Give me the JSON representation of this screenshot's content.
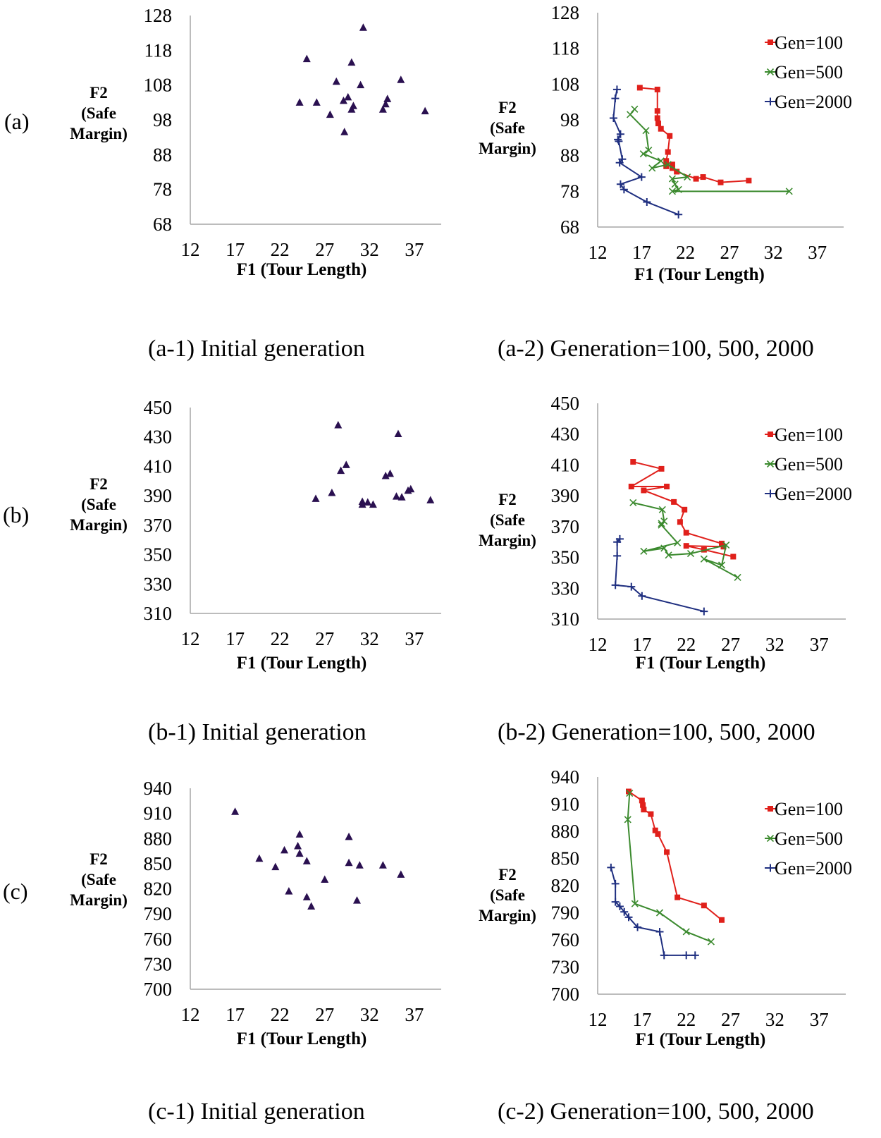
{
  "row_labels": [
    "(a)",
    "(b)",
    "(c)"
  ],
  "colors": {
    "gen100": "#e0201b",
    "gen500": "#3b8a2e",
    "gen2000": "#1f2f80",
    "initial": "#2a1050",
    "axis": "#a6a6a6"
  },
  "chart_data": [
    {
      "type": "scatter",
      "caption": "(a-1) Initial generation",
      "xlabel": "F1 (Tour Length)",
      "ylabel": [
        "F2",
        "(Safe",
        "Margin)"
      ],
      "xlim": [
        12,
        40
      ],
      "ylim": [
        68,
        128
      ],
      "xticks": [
        "12",
        "17",
        "22",
        "27",
        "32",
        "37"
      ],
      "yticks": [
        "68",
        "78",
        "88",
        "98",
        "108",
        "118",
        "128"
      ],
      "legend": null,
      "series": [
        {
          "name": "Initial",
          "marker": "triangle",
          "color": "#2a1050",
          "x": [
            31.3,
            25.0,
            30.0,
            28.3,
            31.0,
            35.5,
            29.6,
            29.1,
            24.2,
            26.1,
            30.2,
            30.0,
            34.0,
            33.8,
            33.5,
            27.6,
            38.2,
            29.2
          ],
          "y": [
            124.5,
            115.5,
            114.5,
            109.0,
            108.0,
            109.5,
            104.5,
            103.5,
            103.0,
            103.0,
            102.0,
            101.0,
            104.0,
            102.5,
            101.0,
            99.5,
            100.5,
            94.5
          ]
        }
      ]
    },
    {
      "type": "line",
      "caption": "(a-2) Generation=100, 500, 2000",
      "xlabel": "F1 (Tour Length)",
      "ylabel": [
        "F2",
        "(Safe",
        "Margin)"
      ],
      "xlim": [
        12,
        40
      ],
      "ylim": [
        68,
        128
      ],
      "xticks": [
        "12",
        "17",
        "22",
        "27",
        "32",
        "37"
      ],
      "yticks": [
        "68",
        "78",
        "88",
        "98",
        "108",
        "118",
        "128"
      ],
      "legend": [
        "Gen=100",
        "Gen=500",
        "Gen=2000"
      ],
      "series": [
        {
          "name": "Gen=100",
          "marker": "square",
          "color": "#e0201b",
          "x": [
            16.8,
            18.8,
            18.8,
            18.8,
            18.9,
            19.2,
            20.2,
            20.0,
            19.8,
            19.8,
            20.5,
            20.5,
            21.0,
            23.2,
            24.0,
            26.0,
            29.2
          ],
          "y": [
            107.0,
            106.5,
            100.5,
            98.5,
            97.0,
            95.5,
            93.5,
            89.0,
            86.5,
            85.0,
            85.5,
            84.5,
            83.5,
            81.5,
            82.0,
            80.5,
            81.0
          ]
        },
        {
          "name": "Gen=500",
          "marker": "x",
          "color": "#3b8a2e",
          "x": [
            16.2,
            15.7,
            17.5,
            17.8,
            17.2,
            19.2,
            18.2,
            20.0,
            22.2,
            20.5,
            20.8,
            21.2,
            20.5,
            33.8
          ],
          "y": [
            101.0,
            99.5,
            95.0,
            89.5,
            88.5,
            86.5,
            84.5,
            85.5,
            82.0,
            81.5,
            80.0,
            78.5,
            78.0,
            78.0
          ]
        },
        {
          "name": "Gen=2000",
          "marker": "plus",
          "color": "#1f2f80",
          "x": [
            14.2,
            14.0,
            13.8,
            14.6,
            14.3,
            14.4,
            14.8,
            14.5,
            17.0,
            14.6,
            15.0,
            17.6,
            21.2
          ],
          "y": [
            106.5,
            104.0,
            98.5,
            94.0,
            92.5,
            92.0,
            87.0,
            86.0,
            82.0,
            80.0,
            78.5,
            75.0,
            71.5
          ]
        }
      ]
    },
    {
      "type": "scatter",
      "caption": "(b-1) Initial generation",
      "xlabel": "F1 (Tour Length)",
      "ylabel": [
        "F2",
        "(Safe",
        "Margin)"
      ],
      "xlim": [
        12,
        40
      ],
      "ylim": [
        310,
        450
      ],
      "xticks": [
        "12",
        "17",
        "22",
        "27",
        "32",
        "37"
      ],
      "yticks": [
        "310",
        "330",
        "350",
        "370",
        "390",
        "410",
        "430",
        "450"
      ],
      "legend": null,
      "series": [
        {
          "name": "Initial",
          "marker": "triangle",
          "color": "#2a1050",
          "x": [
            28.5,
            35.2,
            29.4,
            28.8,
            34.3,
            33.8,
            36.6,
            36.3,
            27.8,
            26.0,
            35.0,
            35.6,
            38.8,
            31.2,
            31.8,
            31.2,
            32.4
          ],
          "y": [
            438.0,
            432.0,
            411.0,
            407.0,
            405.0,
            403.5,
            394.5,
            393.5,
            392.0,
            388.0,
            389.5,
            389.0,
            387.0,
            386.0,
            385.5,
            384.0,
            384.0
          ]
        }
      ]
    },
    {
      "type": "line",
      "caption": "(b-2) Generation=100, 500, 2000",
      "xlabel": "F1 (Tour Length)",
      "ylabel": [
        "F2",
        "(Safe",
        "Margin)"
      ],
      "xlim": [
        12,
        40
      ],
      "ylim": [
        310,
        450
      ],
      "xticks": [
        "12",
        "17",
        "22",
        "27",
        "32",
        "37"
      ],
      "yticks": [
        "310",
        "330",
        "350",
        "370",
        "390",
        "410",
        "430",
        "450"
      ],
      "legend": [
        "Gen=100",
        "Gen=500",
        "Gen=2000"
      ],
      "series": [
        {
          "name": "Gen=100",
          "marker": "square",
          "color": "#e0201b",
          "x": [
            16.0,
            19.2,
            15.8,
            19.8,
            17.2,
            20.6,
            21.8,
            21.3,
            22.0,
            26.0,
            26.2,
            22.0,
            24.0,
            27.3
          ],
          "y": [
            412.0,
            407.5,
            396.0,
            396.0,
            393.5,
            386.0,
            381.0,
            373.0,
            366.0,
            359.0,
            357.0,
            357.5,
            355.0,
            350.5
          ]
        },
        {
          "name": "Gen=500",
          "marker": "x",
          "color": "#3b8a2e",
          "x": [
            16.0,
            19.3,
            19.5,
            19.2,
            19.2,
            21.0,
            17.2,
            19.5,
            20.0,
            22.5,
            26.5,
            26.0,
            24.0,
            27.8
          ],
          "y": [
            385.5,
            381.0,
            373.5,
            372.0,
            371.0,
            359.5,
            354.0,
            356.0,
            351.5,
            352.5,
            358.0,
            345.0,
            349.0,
            337.0
          ]
        },
        {
          "name": "Gen=2000",
          "marker": "plus",
          "color": "#1f2f80",
          "x": [
            14.5,
            14.2,
            14.2,
            14.0,
            15.8,
            17.0,
            24.0
          ],
          "y": [
            362.0,
            360.0,
            351.0,
            332.0,
            331.0,
            325.0,
            315.0
          ]
        }
      ]
    },
    {
      "type": "scatter",
      "caption": "(c-1) Initial generation",
      "xlabel": "F1 (Tour Length)",
      "ylabel": [
        "F2",
        "(Safe",
        "Margin)"
      ],
      "xlim": [
        12,
        40
      ],
      "ylim": [
        700,
        940
      ],
      "xticks": [
        "12",
        "17",
        "22",
        "27",
        "32",
        "37"
      ],
      "yticks": [
        "700",
        "730",
        "760",
        "790",
        "820",
        "850",
        "880",
        "910",
        "940"
      ],
      "legend": null,
      "series": [
        {
          "name": "Initial",
          "marker": "triangle",
          "color": "#2a1050",
          "x": [
            17.0,
            24.2,
            29.7,
            24.0,
            22.5,
            24.2,
            19.7,
            25.0,
            29.7,
            30.9,
            33.5,
            21.5,
            35.5,
            27.0,
            23.0,
            25.0,
            30.6,
            25.5
          ],
          "y": [
            912.0,
            885.0,
            882.0,
            871.0,
            866.0,
            862.0,
            856.0,
            853.0,
            851.0,
            848.0,
            848.0,
            846.0,
            837.0,
            831.0,
            817.0,
            810.0,
            806.0,
            799.0
          ]
        }
      ]
    },
    {
      "type": "line",
      "caption": "(c-2) Generation=100, 500, 2000",
      "xlabel": "F1 (Tour Length)",
      "ylabel": [
        "F2",
        "(Safe",
        "Margin)"
      ],
      "xlim": [
        12,
        40
      ],
      "ylim": [
        700,
        940
      ],
      "xticks": [
        "12",
        "17",
        "22",
        "27",
        "32",
        "37"
      ],
      "yticks": [
        "700",
        "730",
        "760",
        "790",
        "820",
        "850",
        "880",
        "910",
        "940"
      ],
      "legend": [
        "Gen=100",
        "Gen=500",
        "Gen=2000"
      ],
      "series": [
        {
          "name": "Gen=100",
          "marker": "square",
          "color": "#e0201b",
          "x": [
            15.5,
            17.0,
            17.1,
            17.2,
            18.0,
            18.5,
            18.8,
            19.8,
            21.0,
            24.0,
            26.0
          ],
          "y": [
            924.0,
            914.0,
            909.0,
            904.0,
            899.0,
            881.0,
            877.0,
            857.0,
            807.0,
            798.0,
            782.0
          ]
        },
        {
          "name": "Gen=500",
          "marker": "x",
          "color": "#3b8a2e",
          "x": [
            15.6,
            15.4,
            16.2,
            19.0,
            22.0,
            24.8
          ],
          "y": [
            922.0,
            893.0,
            800.0,
            790.0,
            769.0,
            758.0
          ]
        },
        {
          "name": "Gen=2000",
          "marker": "plus",
          "color": "#1f2f80",
          "x": [
            13.5,
            14.0,
            14.0,
            14.5,
            15.0,
            15.5,
            16.5,
            19.0,
            19.5,
            22.0,
            23.0
          ],
          "y": [
            840.0,
            822.0,
            802.0,
            797.0,
            791.0,
            785.0,
            774.0,
            769.0,
            743.0,
            743.0,
            743.0
          ]
        }
      ]
    }
  ]
}
